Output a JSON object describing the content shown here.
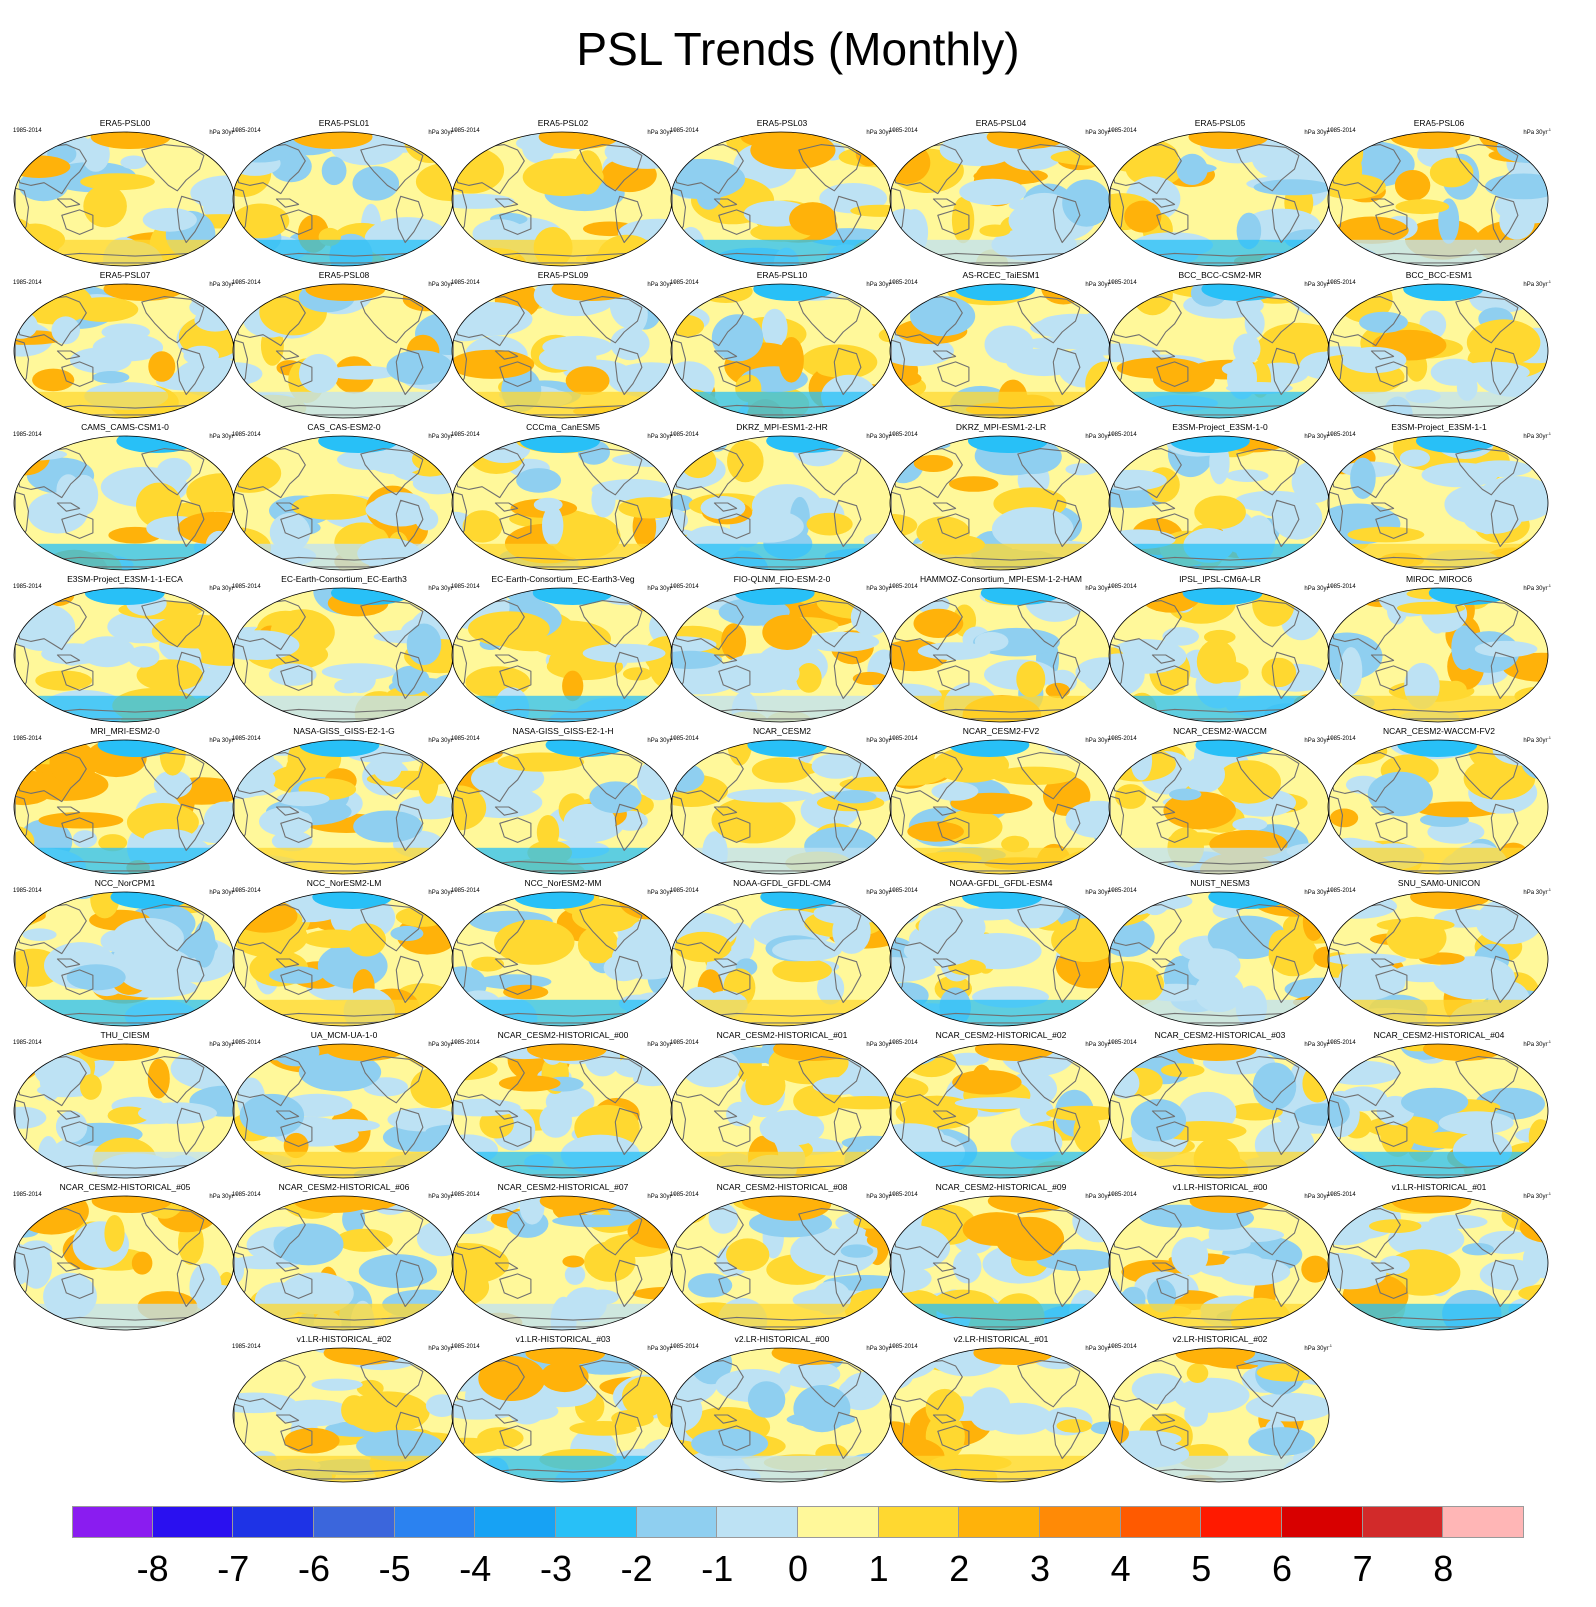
{
  "title": "PSL Trends (Monthly)",
  "period_label": "1985-2014",
  "unit_label": "hPa 30yr",
  "unit_exponent": "-1",
  "panels": [
    "ERA5-PSL00",
    "ERA5-PSL01",
    "ERA5-PSL02",
    "ERA5-PSL03",
    "ERA5-PSL04",
    "ERA5-PSL05",
    "ERA5-PSL06",
    "ERA5-PSL07",
    "ERA5-PSL08",
    "ERA5-PSL09",
    "ERA5-PSL10",
    "AS-RCEC_TaiESM1",
    "BCC_BCC-CSM2-MR",
    "BCC_BCC-ESM1",
    "CAMS_CAMS-CSM1-0",
    "CAS_CAS-ESM2-0",
    "CCCma_CanESM5",
    "DKRZ_MPI-ESM1-2-HR",
    "DKRZ_MPI-ESM1-2-LR",
    "E3SM-Project_E3SM-1-0",
    "E3SM-Project_E3SM-1-1",
    "E3SM-Project_E3SM-1-1-ECA",
    "EC-Earth-Consortium_EC-Earth3",
    "EC-Earth-Consortium_EC-Earth3-Veg",
    "FIO-QLNM_FIO-ESM-2-0",
    "HAMMOZ-Consortium_MPI-ESM-1-2-HAM",
    "IPSL_IPSL-CM6A-LR",
    "MIROC_MIROC6",
    "MRI_MRI-ESM2-0",
    "NASA-GISS_GISS-E2-1-G",
    "NASA-GISS_GISS-E2-1-H",
    "NCAR_CESM2",
    "NCAR_CESM2-FV2",
    "NCAR_CESM2-WACCM",
    "NCAR_CESM2-WACCM-FV2",
    "NCC_NorCPM1",
    "NCC_NorESM2-LM",
    "NCC_NorESM2-MM",
    "NOAA-GFDL_GFDL-CM4",
    "NOAA-GFDL_GFDL-ESM4",
    "NUIST_NESM3",
    "SNU_SAM0-UNICON",
    "THU_CIESM",
    "UA_MCM-UA-1-0",
    "NCAR_CESM2-HISTORICAL_#00",
    "NCAR_CESM2-HISTORICAL_#01",
    "NCAR_CESM2-HISTORICAL_#02",
    "NCAR_CESM2-HISTORICAL_#03",
    "NCAR_CESM2-HISTORICAL_#04",
    "NCAR_CESM2-HISTORICAL_#05",
    "NCAR_CESM2-HISTORICAL_#06",
    "NCAR_CESM2-HISTORICAL_#07",
    "NCAR_CESM2-HISTORICAL_#08",
    "NCAR_CESM2-HISTORICAL_#09",
    "v1.LR-HISTORICAL_#00",
    "v1.LR-HISTORICAL_#01",
    "v1.LR-HISTORICAL_#02",
    "v1.LR-HISTORICAL_#03",
    "v2.LR-HISTORICAL_#00",
    "v2.LR-HISTORICAL_#01",
    "v2.LR-HISTORICAL_#02"
  ],
  "colorbar": {
    "colors": [
      "#8a1cf0",
      "#2a10f0",
      "#1e33e6",
      "#3b66dc",
      "#2b82f0",
      "#17a2f4",
      "#28c0f7",
      "#8fcff0",
      "#bde2f4",
      "#fff89a",
      "#ffd830",
      "#ffb20a",
      "#ff8a06",
      "#ff5a00",
      "#ff1a00",
      "#d80000",
      "#d22a2a",
      "#ffb6b6"
    ],
    "labels": [
      "-8",
      "-7",
      "-6",
      "-5",
      "-4",
      "-3",
      "-2",
      "-1",
      "0",
      "1",
      "2",
      "3",
      "4",
      "5",
      "6",
      "7",
      "8"
    ]
  }
}
